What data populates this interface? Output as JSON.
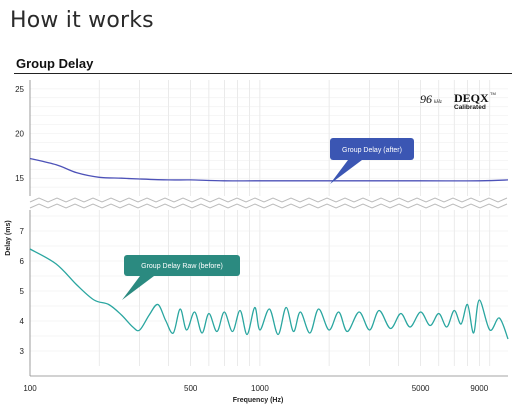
{
  "header": {
    "title": "How it works"
  },
  "chart_title": "Group Delay",
  "logo": {
    "rate": "96",
    "rate_unit": "kHz",
    "brand": "DEQX",
    "sub": "Calibrated",
    "tm": "TM"
  },
  "colors": {
    "after": "#4d52b8",
    "before": "#2aa6a0",
    "callout_after": "#3b56b3",
    "callout_before": "#2b8a80",
    "grid": "#dcdcdc"
  },
  "chart_data": {
    "type": "line",
    "title": "Group Delay",
    "xlabel": "Frequency (Hz)",
    "ylabel": "Delay (ms)",
    "xscale": "log",
    "xlim": [
      100,
      12000
    ],
    "x_ticks": [
      100,
      500,
      1000,
      5000,
      9000
    ],
    "x_tick_labels": [
      "100",
      "500",
      "1000",
      "5000",
      "9000"
    ],
    "axis_break": true,
    "ylim_upper": [
      13,
      26
    ],
    "ylim_lower": [
      2.5,
      7.7
    ],
    "y_ticks_upper": [
      15,
      20,
      25
    ],
    "y_ticks_lower": [
      3,
      4,
      5,
      6,
      7
    ],
    "grid": true,
    "series": [
      {
        "name": "Group Delay (after)",
        "x": [
          100,
          130,
          160,
          200,
          250,
          300,
          400,
          500,
          700,
          1000,
          2000,
          5000,
          9000,
          12000
        ],
        "y": [
          17.2,
          16.5,
          15.6,
          15.1,
          15.0,
          14.9,
          14.8,
          14.8,
          14.7,
          14.7,
          14.7,
          14.7,
          14.7,
          14.8
        ]
      },
      {
        "name": "Group Delay Raw (before)",
        "x": [
          100,
          130,
          160,
          190,
          220,
          250,
          280,
          300,
          330,
          360,
          390,
          420,
          450,
          480,
          520,
          560,
          600,
          650,
          700,
          760,
          820,
          880,
          950,
          1000,
          1100,
          1200,
          1300,
          1400,
          1500,
          1650,
          1800,
          2000,
          2200,
          2400,
          2700,
          3000,
          3300,
          3700,
          4100,
          4500,
          5000,
          5500,
          6000,
          6500,
          7000,
          7500,
          8000,
          8500,
          9000,
          10000,
          11000,
          12000
        ],
        "y": [
          6.4,
          5.9,
          5.2,
          4.7,
          4.55,
          4.2,
          3.8,
          3.7,
          4.2,
          4.55,
          4.0,
          3.6,
          4.4,
          3.7,
          4.3,
          3.6,
          4.25,
          3.65,
          4.3,
          3.65,
          4.35,
          3.55,
          4.45,
          3.7,
          4.4,
          3.55,
          4.45,
          3.65,
          4.3,
          3.6,
          4.4,
          3.7,
          4.3,
          3.65,
          4.3,
          3.7,
          4.35,
          3.75,
          4.25,
          3.8,
          4.3,
          3.85,
          4.25,
          3.8,
          4.35,
          3.9,
          4.55,
          3.6,
          4.7,
          3.7,
          4.1,
          3.4
        ]
      }
    ],
    "annotations": [
      "Group Delay (after)",
      "Group Delay Raw (before)"
    ]
  }
}
